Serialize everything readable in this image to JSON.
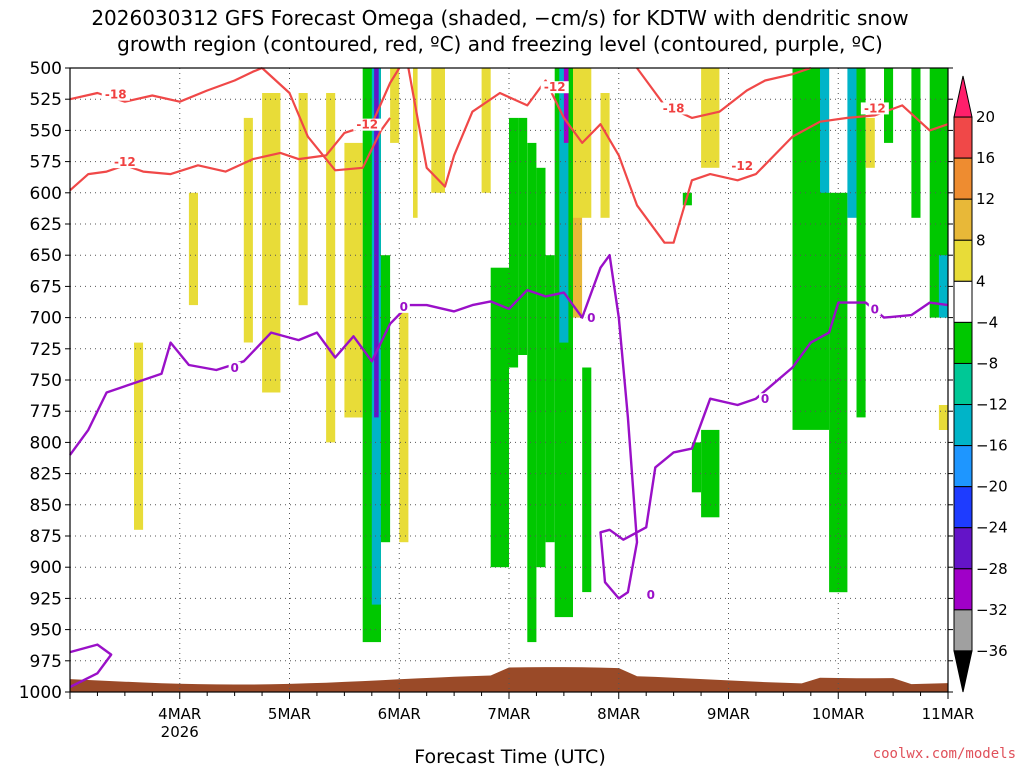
{
  "title_line1": "2026030312 GFS Forecast Omega (shaded, −cm/s) for KDTW with dendritic snow",
  "title_line2": "growth region (contoured, red, ºC) and freezing level (contoured, purple, ºC)",
  "x_axis_label": "Forecast Time (UTC)",
  "credit": "coolwx.com/models",
  "chart_data": {
    "type": "heatmap",
    "title": "2026030312 GFS Forecast Omega (shaded, −cm/s) for KDTW with dendritic snow growth region (contoured, red, ºC) and freezing level (contoured, purple, ºC)",
    "xlabel": "Forecast Time (UTC)",
    "ylabel": "",
    "x_range_hours": [
      -12,
      180
    ],
    "y_range_hpa": [
      500,
      1000
    ],
    "y_reversed": true,
    "y_ticks": [
      "500",
      "525",
      "550",
      "575",
      "600",
      "625",
      "650",
      "675",
      "700",
      "725",
      "750",
      "775",
      "800",
      "825",
      "850",
      "875",
      "900",
      "925",
      "950",
      "975",
      "1000"
    ],
    "x_ticks": [
      {
        "label": "4MAR",
        "sub": "2026",
        "hour": 12
      },
      {
        "label": "5MAR",
        "hour": 36
      },
      {
        "label": "6MAR",
        "hour": 60
      },
      {
        "label": "7MAR",
        "hour": 84
      },
      {
        "label": "8MAR",
        "hour": 108
      },
      {
        "label": "9MAR",
        "hour": 132
      },
      {
        "label": "10MAR",
        "hour": 156
      },
      {
        "label": "11MAR",
        "hour": 180
      }
    ],
    "grid": true,
    "colorbar": {
      "labels": [
        "20",
        "16",
        "12",
        "8",
        "4",
        "−4",
        "−8",
        "−12",
        "−16",
        "−20",
        "−24",
        "−28",
        "−32",
        "−36"
      ],
      "colors": [
        "#ff1f6b",
        "#f04848",
        "#ee8c30",
        "#e8b838",
        "#e8dc38",
        "#ffffff",
        "#00c800",
        "#00c896",
        "#00b4c8",
        "#1e96ff",
        "#1e3cff",
        "#6414c8",
        "#a000c8",
        "#a0a0a0",
        "#000000"
      ]
    },
    "freezing_level_0C_hpa": [
      {
        "h": -12,
        "p": 810
      },
      {
        "h": -8,
        "p": 790
      },
      {
        "h": -4,
        "p": 760
      },
      {
        "h": 0,
        "p": 755
      },
      {
        "h": 4,
        "p": 750
      },
      {
        "h": 8,
        "p": 745
      },
      {
        "h": 10,
        "p": 720
      },
      {
        "h": 14,
        "p": 738
      },
      {
        "h": 20,
        "p": 742
      },
      {
        "h": 26,
        "p": 735
      },
      {
        "h": 32,
        "p": 712
      },
      {
        "h": 38,
        "p": 718
      },
      {
        "h": 42,
        "p": 712
      },
      {
        "h": 46,
        "p": 732
      },
      {
        "h": 50,
        "p": 715
      },
      {
        "h": 54,
        "p": 735
      },
      {
        "h": 58,
        "p": 705
      },
      {
        "h": 62,
        "p": 690
      },
      {
        "h": 66,
        "p": 690
      },
      {
        "h": 72,
        "p": 695
      },
      {
        "h": 76,
        "p": 690
      },
      {
        "h": 80,
        "p": 687
      },
      {
        "h": 84,
        "p": 693
      },
      {
        "h": 88,
        "p": 678
      },
      {
        "h": 92,
        "p": 683
      },
      {
        "h": 96,
        "p": 680
      },
      {
        "h": 98,
        "p": 690
      },
      {
        "h": 100,
        "p": 700
      },
      {
        "h": 102,
        "p": 680
      },
      {
        "h": 104,
        "p": 660
      },
      {
        "h": 106,
        "p": 650
      },
      {
        "h": 108,
        "p": 700
      },
      {
        "h": 110,
        "p": 780
      },
      {
        "h": 112,
        "p": 880
      },
      {
        "h": 110,
        "p": 920
      },
      {
        "h": 108,
        "p": 925
      },
      {
        "h": 105,
        "p": 912
      },
      {
        "h": 104,
        "p": 872
      },
      {
        "h": 106,
        "p": 870
      },
      {
        "h": 109,
        "p": 878
      },
      {
        "h": 114,
        "p": 868
      },
      {
        "h": 116,
        "p": 820
      },
      {
        "h": 120,
        "p": 808
      },
      {
        "h": 124,
        "p": 805
      },
      {
        "h": 128,
        "p": 765
      },
      {
        "h": 134,
        "p": 770
      },
      {
        "h": 138,
        "p": 765
      },
      {
        "h": 146,
        "p": 740
      },
      {
        "h": 150,
        "p": 720
      },
      {
        "h": 154,
        "p": 712
      },
      {
        "h": 156,
        "p": 688
      },
      {
        "h": 162,
        "p": 688
      },
      {
        "h": 166,
        "p": 700
      },
      {
        "h": 172,
        "p": 698
      },
      {
        "h": 176,
        "p": 688
      },
      {
        "h": 180,
        "p": 690
      }
    ],
    "freezing_level_lower_hpa": [
      {
        "h": -12,
        "p": 968
      },
      {
        "h": -6,
        "p": 962
      },
      {
        "h": -3,
        "p": 970
      },
      {
        "h": -6,
        "p": 985
      },
      {
        "h": -12,
        "p": 996
      }
    ],
    "dgz_minus12_hpa": [
      {
        "h": -12,
        "p": 598
      },
      {
        "h": -8,
        "p": 585
      },
      {
        "h": -4,
        "p": 583
      },
      {
        "h": 0,
        "p": 578
      },
      {
        "h": 4,
        "p": 583
      },
      {
        "h": 10,
        "p": 585
      },
      {
        "h": 16,
        "p": 578
      },
      {
        "h": 22,
        "p": 583
      },
      {
        "h": 28,
        "p": 573
      },
      {
        "h": 34,
        "p": 568
      },
      {
        "h": 38,
        "p": 573
      },
      {
        "h": 44,
        "p": 570
      },
      {
        "h": 48,
        "p": 552
      },
      {
        "h": 54,
        "p": 545
      },
      {
        "h": 58,
        "p": 512
      },
      {
        "h": 60,
        "p": 500
      }
    ],
    "dgz_minus12_upper_hpa": [
      {
        "h": 30,
        "p": 500
      },
      {
        "h": 36,
        "p": 520
      },
      {
        "h": 40,
        "p": 555
      },
      {
        "h": 46,
        "p": 582
      },
      {
        "h": 52,
        "p": 580
      },
      {
        "h": 56,
        "p": 550
      },
      {
        "h": 58,
        "p": 540
      }
    ],
    "dgz_minus12_mid_hpa": [
      {
        "h": 62,
        "p": 500
      },
      {
        "h": 64,
        "p": 540
      },
      {
        "h": 66,
        "p": 580
      },
      {
        "h": 70,
        "p": 595
      },
      {
        "h": 72,
        "p": 570
      },
      {
        "h": 76,
        "p": 535
      },
      {
        "h": 82,
        "p": 520
      },
      {
        "h": 88,
        "p": 530
      },
      {
        "h": 92,
        "p": 510
      },
      {
        "h": 96,
        "p": 540
      },
      {
        "h": 100,
        "p": 560
      },
      {
        "h": 104,
        "p": 545
      },
      {
        "h": 108,
        "p": 570
      },
      {
        "h": 112,
        "p": 610
      },
      {
        "h": 118,
        "p": 640
      },
      {
        "h": 120,
        "p": 640
      },
      {
        "h": 122,
        "p": 615
      },
      {
        "h": 124,
        "p": 590
      },
      {
        "h": 128,
        "p": 585
      },
      {
        "h": 134,
        "p": 590
      },
      {
        "h": 138,
        "p": 585
      },
      {
        "h": 142,
        "p": 570
      },
      {
        "h": 146,
        "p": 555
      },
      {
        "h": 152,
        "p": 543
      },
      {
        "h": 158,
        "p": 540
      },
      {
        "h": 164,
        "p": 538
      },
      {
        "h": 170,
        "p": 530
      },
      {
        "h": 176,
        "p": 550
      },
      {
        "h": 180,
        "p": 545
      }
    ],
    "dgz_minus18_hpa": [
      {
        "h": -12,
        "p": 525
      },
      {
        "h": -6,
        "p": 520
      },
      {
        "h": 0,
        "p": 527
      },
      {
        "h": 6,
        "p": 522
      },
      {
        "h": 12,
        "p": 527
      },
      {
        "h": 18,
        "p": 518
      },
      {
        "h": 24,
        "p": 510
      },
      {
        "h": 28,
        "p": 503
      },
      {
        "h": 30,
        "p": 500
      }
    ],
    "dgz_minus18_right_hpa": [
      {
        "h": 112,
        "p": 500
      },
      {
        "h": 118,
        "p": 530
      },
      {
        "h": 124,
        "p": 540
      },
      {
        "h": 130,
        "p": 535
      },
      {
        "h": 136,
        "p": 518
      },
      {
        "h": 140,
        "p": 510
      },
      {
        "h": 146,
        "p": 505
      },
      {
        "h": 150,
        "p": 500
      }
    ],
    "contour_labels": [
      {
        "text": "-18",
        "color": "red",
        "h": -2,
        "p": 523
      },
      {
        "text": "-12",
        "color": "red",
        "h": 0,
        "p": 577
      },
      {
        "text": "-12",
        "color": "red",
        "h": 53,
        "p": 547
      },
      {
        "text": "-12",
        "color": "red",
        "h": 94,
        "p": 517
      },
      {
        "text": "-18",
        "color": "red",
        "h": 120,
        "p": 534
      },
      {
        "text": "-12",
        "color": "red",
        "h": 135,
        "p": 580
      },
      {
        "text": "-12",
        "color": "red",
        "h": 164,
        "p": 534
      },
      {
        "text": "0",
        "color": "purple",
        "h": 61,
        "p": 693
      },
      {
        "text": "0",
        "color": "purple",
        "h": 24,
        "p": 742
      },
      {
        "text": "0",
        "color": "purple",
        "h": 102,
        "p": 702
      },
      {
        "text": "0",
        "color": "purple",
        "h": 140,
        "p": 767
      },
      {
        "text": "0",
        "color": "purple",
        "h": 164,
        "p": 695
      },
      {
        "text": "0",
        "color": "purple",
        "h": 115,
        "p": 924
      }
    ],
    "omega_shading": [
      {
        "h0": 0,
        "h1": 2,
        "p0": 500,
        "p1": 940,
        "v": 3
      },
      {
        "h0": 2,
        "h1": 4,
        "p0": 720,
        "p1": 870,
        "v": 4
      },
      {
        "h0": 14,
        "h1": 16,
        "p0": 600,
        "p1": 690,
        "v": 4
      },
      {
        "h0": 26,
        "h1": 28,
        "p0": 540,
        "p1": 720,
        "v": 4
      },
      {
        "h0": 30,
        "h1": 34,
        "p0": 520,
        "p1": 760,
        "v": 4
      },
      {
        "h0": 38,
        "h1": 40,
        "p0": 520,
        "p1": 690,
        "v": 4
      },
      {
        "h0": 44,
        "h1": 46,
        "p0": 520,
        "p1": 800,
        "v": 4
      },
      {
        "h0": 48,
        "h1": 52,
        "p0": 560,
        "p1": 780,
        "v": 4
      },
      {
        "h0": 52,
        "h1": 56,
        "p0": 500,
        "p1": 960,
        "v": -6
      },
      {
        "h0": 54,
        "h1": 56,
        "p0": 500,
        "p1": 930,
        "v": -12
      },
      {
        "h0": 54.5,
        "h1": 55.5,
        "p0": 500,
        "p1": 780,
        "v": -26
      },
      {
        "h0": 56,
        "h1": 58,
        "p0": 650,
        "p1": 880,
        "v": -6
      },
      {
        "h0": 58,
        "h1": 60,
        "p0": 500,
        "p1": 560,
        "v": 4
      },
      {
        "h0": 60,
        "h1": 62,
        "p0": 690,
        "p1": 880,
        "v": 4
      },
      {
        "h0": 63,
        "h1": 64,
        "p0": 500,
        "p1": 620,
        "v": 4
      },
      {
        "h0": 67,
        "h1": 70,
        "p0": 500,
        "p1": 600,
        "v": 4
      },
      {
        "h0": 78,
        "h1": 80,
        "p0": 500,
        "p1": 600,
        "v": 4
      },
      {
        "h0": 80,
        "h1": 84,
        "p0": 660,
        "p1": 900,
        "v": -6
      },
      {
        "h0": 84,
        "h1": 86,
        "p0": 540,
        "p1": 740,
        "v": -6
      },
      {
        "h0": 86,
        "h1": 88,
        "p0": 540,
        "p1": 730,
        "v": -6
      },
      {
        "h0": 88,
        "h1": 90,
        "p0": 560,
        "p1": 960,
        "v": -6
      },
      {
        "h0": 90,
        "h1": 92,
        "p0": 580,
        "p1": 900,
        "v": -6
      },
      {
        "h0": 92,
        "h1": 94,
        "p0": 650,
        "p1": 880,
        "v": -6
      },
      {
        "h0": 94,
        "h1": 98,
        "p0": 500,
        "p1": 940,
        "v": -6
      },
      {
        "h0": 95,
        "h1": 97,
        "p0": 500,
        "p1": 720,
        "v": -12
      },
      {
        "h0": 96,
        "h1": 97,
        "p0": 500,
        "p1": 560,
        "v": -28
      },
      {
        "h0": 98,
        "h1": 100,
        "p0": 600,
        "p1": 700,
        "v": 10
      },
      {
        "h0": 98,
        "h1": 102,
        "p0": 500,
        "p1": 620,
        "v": 4
      },
      {
        "h0": 100,
        "h1": 102,
        "p0": 740,
        "p1": 920,
        "v": -6
      },
      {
        "h0": 104,
        "h1": 106,
        "p0": 520,
        "p1": 620,
        "v": 4
      },
      {
        "h0": 122,
        "h1": 124,
        "p0": 600,
        "p1": 610,
        "v": -6
      },
      {
        "h0": 124,
        "h1": 126,
        "p0": 800,
        "p1": 840,
        "v": -6
      },
      {
        "h0": 126,
        "h1": 130,
        "p0": 500,
        "p1": 580,
        "v": 4
      },
      {
        "h0": 126,
        "h1": 130,
        "p0": 790,
        "p1": 860,
        "v": -6
      },
      {
        "h0": 146,
        "h1": 154,
        "p0": 500,
        "p1": 790,
        "v": -6
      },
      {
        "h0": 152,
        "h1": 154,
        "p0": 500,
        "p1": 600,
        "v": -12
      },
      {
        "h0": 154,
        "h1": 158,
        "p0": 600,
        "p1": 920,
        "v": -6
      },
      {
        "h0": 158,
        "h1": 160,
        "p0": 500,
        "p1": 620,
        "v": -12
      },
      {
        "h0": 160,
        "h1": 162,
        "p0": 500,
        "p1": 780,
        "v": -6
      },
      {
        "h0": 162,
        "h1": 164,
        "p0": 540,
        "p1": 580,
        "v": 4
      },
      {
        "h0": 166,
        "h1": 168,
        "p0": 500,
        "p1": 560,
        "v": -6
      },
      {
        "h0": 172,
        "h1": 174,
        "p0": 500,
        "p1": 620,
        "v": -6
      },
      {
        "h0": 176,
        "h1": 180,
        "p0": 500,
        "p1": 700,
        "v": -6
      },
      {
        "h0": 178,
        "h1": 180,
        "p0": 650,
        "p1": 700,
        "v": -12
      },
      {
        "h0": 178,
        "h1": 180,
        "p0": 770,
        "p1": 790,
        "v": 4
      }
    ],
    "terrain_color": "#9a4a28"
  }
}
